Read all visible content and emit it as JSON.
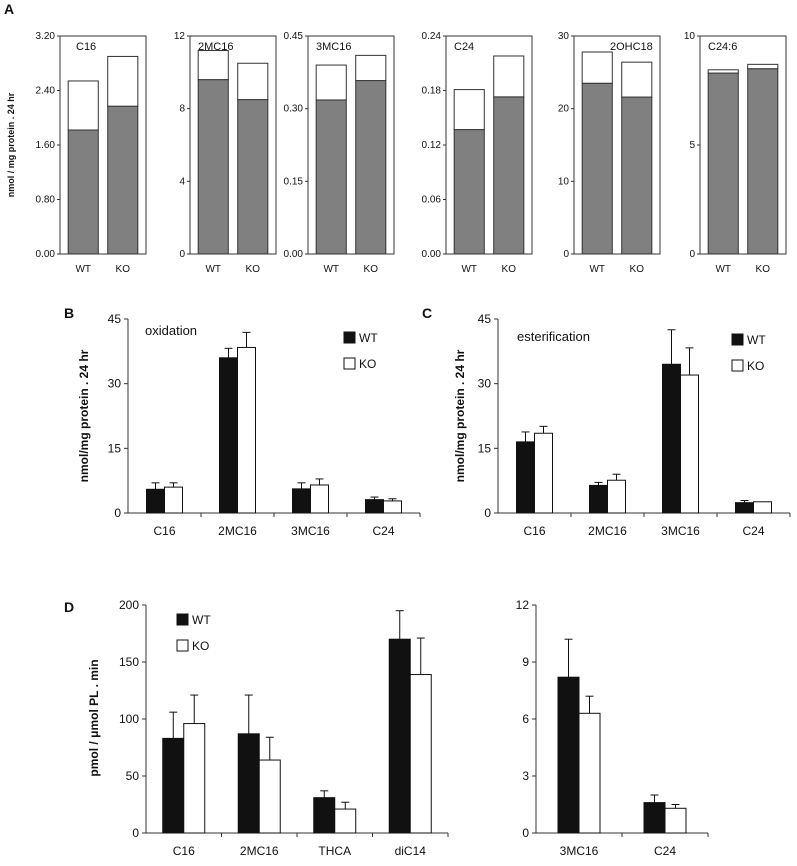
{
  "panel_letters": {
    "A": "A",
    "B": "B",
    "C": "C",
    "D": "D"
  },
  "colors": {
    "wt": "#111111",
    "ko": "#ffffff",
    "stack_bottom": "#808080",
    "stack_top": "#ffffff",
    "axis": "#333333"
  },
  "chart_data": [
    {
      "panel": "A",
      "type": "bar",
      "stacked": true,
      "ylabel": "nmol / mg protein . 24 hr",
      "subplots": [
        {
          "title": "C16",
          "categories": [
            "WT",
            "KO"
          ],
          "ylim": [
            0,
            3.2
          ],
          "yticks": [
            "0.00",
            "0.80",
            "1.60",
            "2.40",
            "3.20"
          ],
          "series": [
            {
              "name": "oxidation",
              "values": [
                1.82,
                2.17
              ]
            },
            {
              "name": "esterification",
              "values": [
                0.72,
                0.73
              ]
            }
          ]
        },
        {
          "title": "2MC16",
          "categories": [
            "WT",
            "KO"
          ],
          "ylim": [
            0,
            12
          ],
          "yticks": [
            "0",
            "4",
            "8",
            "12"
          ],
          "series": [
            {
              "name": "oxidation",
              "values": [
                9.6,
                8.5
              ]
            },
            {
              "name": "esterification",
              "values": [
                1.6,
                2.0
              ]
            }
          ]
        },
        {
          "title": "3MC16",
          "categories": [
            "WT",
            "KO"
          ],
          "ylim": [
            0,
            0.45
          ],
          "yticks": [
            "0.00",
            "0.15",
            "0.30",
            "0.45"
          ],
          "series": [
            {
              "name": "oxidation",
              "values": [
                0.318,
                0.358
              ]
            },
            {
              "name": "esterification",
              "values": [
                0.072,
                0.052
              ]
            }
          ]
        },
        {
          "title": "C24",
          "categories": [
            "WT",
            "KO"
          ],
          "ylim": [
            0,
            0.24
          ],
          "yticks": [
            "0.00",
            "0.06",
            "0.12",
            "0.18",
            "0.24"
          ],
          "series": [
            {
              "name": "oxidation",
              "values": [
                0.137,
                0.173
              ]
            },
            {
              "name": "esterification",
              "values": [
                0.044,
                0.045
              ]
            }
          ]
        },
        {
          "title": "2OHC18",
          "categories": [
            "WT",
            "KO"
          ],
          "ylim": [
            0,
            30
          ],
          "yticks": [
            "0",
            "10",
            "20",
            "30"
          ],
          "series": [
            {
              "name": "oxidation",
              "values": [
                23.5,
                21.6
              ]
            },
            {
              "name": "esterification",
              "values": [
                4.3,
                4.8
              ]
            }
          ]
        },
        {
          "title": "C24:6",
          "categories": [
            "WT",
            "KO"
          ],
          "ylim": [
            0,
            10
          ],
          "yticks": [
            "0",
            "5",
            "10"
          ],
          "series": [
            {
              "name": "oxidation",
              "values": [
                8.3,
                8.5
              ]
            },
            {
              "name": "esterification",
              "values": [
                0.15,
                0.2
              ]
            }
          ]
        }
      ]
    },
    {
      "panel": "B",
      "type": "bar",
      "title": "oxidation",
      "ylabel": "nmol/mg protein . 24 hr",
      "categories": [
        "C16",
        "2MC16",
        "3MC16",
        "C24"
      ],
      "ylim": [
        0,
        45
      ],
      "yticks": [
        "0",
        "15",
        "30",
        "45"
      ],
      "legend": "top-right",
      "series": [
        {
          "name": "WT",
          "values": [
            5.5,
            36,
            5.6,
            3.1
          ],
          "errors": [
            1.5,
            2.2,
            1.4,
            0.6
          ]
        },
        {
          "name": "KO",
          "values": [
            6.0,
            38.4,
            6.5,
            2.8
          ],
          "errors": [
            1.0,
            3.5,
            1.4,
            0.5
          ]
        }
      ]
    },
    {
      "panel": "C",
      "type": "bar",
      "title": "esterification",
      "ylabel": "nmol/mg protein . 24 hr",
      "categories": [
        "C16",
        "2MC16",
        "3MC16",
        "C24"
      ],
      "ylim": [
        0,
        45
      ],
      "yticks": [
        "0",
        "15",
        "30",
        "45"
      ],
      "legend": "top-right",
      "series": [
        {
          "name": "WT",
          "values": [
            16.5,
            6.4,
            34.5,
            2.4
          ],
          "errors": [
            2.3,
            0.7,
            8.0,
            0.5
          ]
        },
        {
          "name": "KO",
          "values": [
            18.5,
            7.6,
            32.0,
            2.6
          ],
          "errors": [
            1.6,
            1.4,
            6.3,
            0
          ]
        }
      ]
    },
    {
      "panel": "D",
      "type": "bar",
      "ylabel": "pmol / μmol PL . min",
      "categories": [
        "C16",
        "2MC16",
        "THCA",
        "diC14"
      ],
      "ylim": [
        0,
        200
      ],
      "yticks": [
        "0",
        "50",
        "100",
        "150",
        "200"
      ],
      "legend": "top-left",
      "series": [
        {
          "name": "WT",
          "values": [
            83,
            87,
            31,
            170
          ],
          "errors": [
            23,
            34,
            6,
            25
          ]
        },
        {
          "name": "KO",
          "values": [
            96,
            64,
            21,
            139
          ],
          "errors": [
            25,
            20,
            6,
            32
          ]
        }
      ]
    },
    {
      "panel": "D2",
      "type": "bar",
      "categories": [
        "3MC16",
        "C24"
      ],
      "ylim": [
        0,
        12
      ],
      "yticks": [
        "0",
        "3",
        "6",
        "9",
        "12"
      ],
      "series": [
        {
          "name": "WT",
          "values": [
            8.2,
            1.6
          ],
          "errors": [
            2.0,
            0.4
          ]
        },
        {
          "name": "KO",
          "values": [
            6.3,
            1.3
          ],
          "errors": [
            0.9,
            0.2
          ]
        }
      ]
    }
  ]
}
